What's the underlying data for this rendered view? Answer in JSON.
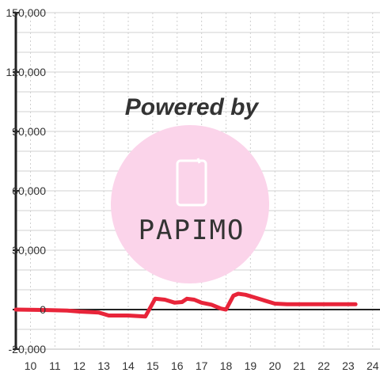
{
  "chart_data": {
    "type": "line",
    "title": "",
    "xlabel": "",
    "ylabel": "",
    "xlim": [
      9.4,
      24.3
    ],
    "ylim": [
      -20000,
      150000
    ],
    "x_ticks": [
      10,
      11,
      12,
      13,
      14,
      15,
      16,
      17,
      18,
      19,
      20,
      21,
      22,
      23,
      24
    ],
    "x_tick_labels": [
      "10",
      "11",
      "12",
      "13",
      "14",
      "15",
      "16",
      "17",
      "18",
      "19",
      "20",
      "21",
      "22",
      "23",
      "24"
    ],
    "y_ticks": [
      -20000,
      0,
      30000,
      60000,
      90000,
      120000,
      150000
    ],
    "y_tick_labels": [
      "-20,000",
      "0",
      "30,000",
      "60,000",
      "90,000",
      "120,000",
      "150,000"
    ],
    "grid": true,
    "series": [
      {
        "color": "#e8253a",
        "x": [
          9.4,
          10.5,
          11.5,
          12.0,
          12.8,
          13.2,
          14.0,
          14.7,
          15.1,
          15.5,
          15.9,
          16.2,
          16.4,
          16.7,
          17.0,
          17.4,
          17.8,
          18.0,
          18.3,
          18.5,
          18.8,
          19.2,
          19.6,
          20.0,
          20.5,
          21.0,
          22.0,
          23.3
        ],
        "y": [
          0,
          -200,
          -500,
          -1000,
          -1500,
          -3000,
          -3000,
          -3500,
          5500,
          5000,
          3500,
          3800,
          5500,
          5000,
          3500,
          2500,
          500,
          0,
          7000,
          8000,
          7500,
          6000,
          4500,
          3000,
          2700,
          2700,
          2700,
          2700
        ]
      }
    ]
  },
  "watermark": {
    "text": "Powered by",
    "logo_text": "PAPIMO",
    "color": "#fbd4ea"
  }
}
